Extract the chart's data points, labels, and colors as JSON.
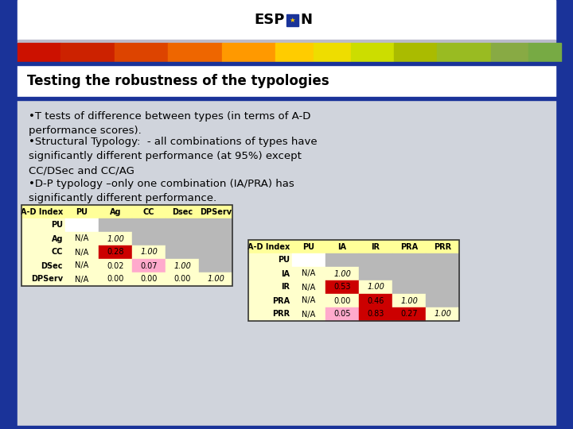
{
  "title": "Testing the robustness of the typologies",
  "bullet1": "•T tests of difference between types (in terms of A-D\nperformance scores).",
  "bullet2": "•Structural Typology:  - all combinations of types have\nsignificantly different performance (at 95%) except\nCC/DSec and CC/AG",
  "bullet3": "•D-P typology –only one combination (IA/PRA) has\nsignificantly different performance.",
  "table1_header": [
    "A-D Index",
    "PU",
    "Ag",
    "CC",
    "Dsec",
    "DPServ"
  ],
  "table1_rows": [
    "PU",
    "Ag",
    "CC",
    "DSec",
    "DPServ"
  ],
  "table1_data": [
    [
      "",
      "",
      "",
      "",
      ""
    ],
    [
      "N/A",
      "1.00",
      "",
      "",
      ""
    ],
    [
      "N/A",
      "0.28",
      "1.00",
      "",
      ""
    ],
    [
      "N/A",
      "0.02",
      "0.07",
      "1.00",
      ""
    ],
    [
      "N/A",
      "0.00",
      "0.00",
      "0.00",
      "1.00"
    ]
  ],
  "table1_cell_colors": [
    [
      "white",
      "gray",
      "gray",
      "gray",
      "gray"
    ],
    [
      "lightyellow",
      "lightyellow",
      "gray",
      "gray",
      "gray"
    ],
    [
      "lightyellow",
      "red",
      "lightyellow",
      "gray",
      "gray"
    ],
    [
      "lightyellow",
      "lightyellow",
      "pink",
      "lightyellow",
      "gray"
    ],
    [
      "lightyellow",
      "lightyellow",
      "lightyellow",
      "lightyellow",
      "lightyellow"
    ]
  ],
  "table2_header": [
    "A-D Index",
    "PU",
    "IA",
    "IR",
    "PRA",
    "PRR"
  ],
  "table2_rows": [
    "PU",
    "IA",
    "IR",
    "PRA",
    "PRR"
  ],
  "table2_data": [
    [
      "",
      "",
      "",
      "",
      ""
    ],
    [
      "N/A",
      "1.00",
      "",
      "",
      ""
    ],
    [
      "N/A",
      "0.53",
      "1.00",
      "",
      ""
    ],
    [
      "N/A",
      "0.00",
      "0.46",
      "1.00",
      ""
    ],
    [
      "N/A",
      "0.05",
      "0.83",
      "0.27",
      "1.00"
    ]
  ],
  "table2_cell_colors": [
    [
      "white",
      "gray",
      "gray",
      "gray",
      "gray"
    ],
    [
      "lightyellow",
      "lightyellow",
      "gray",
      "gray",
      "gray"
    ],
    [
      "lightyellow",
      "red",
      "lightyellow",
      "gray",
      "gray"
    ],
    [
      "lightyellow",
      "lightyellow",
      "red",
      "lightyellow",
      "gray"
    ],
    [
      "lightyellow",
      "pink",
      "red",
      "red",
      "lightyellow"
    ]
  ],
  "dark_blue": "#1a3399",
  "mid_blue": "#0033aa",
  "slide_bg": "#c8ccd4",
  "content_bg": "#d0d4dc",
  "title_bg": "#ffffff",
  "table_header_bg": "#ffff99",
  "table_row_bg": "#ffffcc",
  "gray_cell": "#b8b8b8",
  "red_cell": "#cc0000",
  "pink_cell": "#ffaacc",
  "white_cell": "#ffffff"
}
